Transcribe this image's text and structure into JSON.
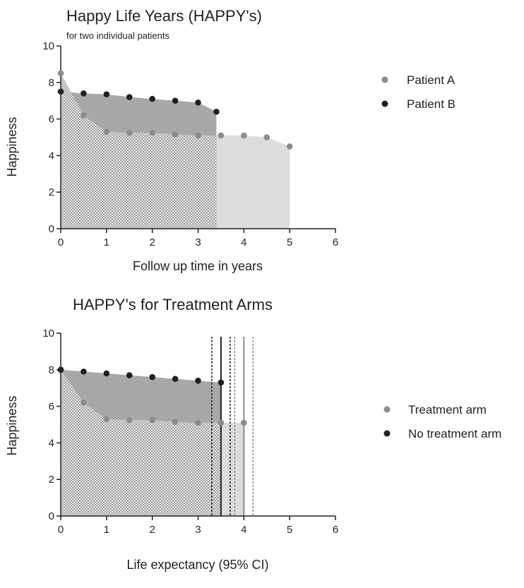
{
  "colors": {
    "patient_a_dot": "#8c8c8c",
    "patient_b_dot": "#231f20",
    "area_light": "#dcdcdc",
    "area_dark": "#a8a8a8",
    "hatch": "#b5b5b5",
    "axis": "#231f20",
    "ci_line_dark": "#231f20",
    "ci_line_gray": "#8c8c8c"
  },
  "chart_data": [
    {
      "type": "area",
      "title": "Happy Life Years (HAPPY's)",
      "subtitle": "for two individual patients",
      "xlabel": "Follow up time in years",
      "ylabel": "Happiness",
      "xlim": [
        0,
        6
      ],
      "ylim": [
        0,
        10
      ],
      "x_ticks": [
        "0",
        "1",
        "2",
        "3",
        "4",
        "5",
        "6"
      ],
      "y_ticks": [
        "0",
        "2",
        "4",
        "6",
        "8",
        "10"
      ],
      "legend_position": "right",
      "series": [
        {
          "name": "Patient A",
          "color": "#8c8c8c",
          "x": [
            0,
            0.5,
            1,
            1.5,
            2,
            2.5,
            3,
            3.5,
            4,
            4.5,
            5
          ],
          "y": [
            8.5,
            6.2,
            5.3,
            5.25,
            5.25,
            5.15,
            5.1,
            5.1,
            5.1,
            5.0,
            4.5
          ]
        },
        {
          "name": "Patient B",
          "color": "#231f20",
          "x": [
            0,
            0.5,
            1,
            1.5,
            2,
            2.5,
            3,
            3.4
          ],
          "y": [
            7.5,
            7.4,
            7.35,
            7.2,
            7.1,
            7.0,
            6.9,
            6.4
          ]
        }
      ]
    },
    {
      "type": "area",
      "title": "HAPPY's for Treatment Arms",
      "xlabel": "Life expectancy (95% CI)",
      "ylabel": "Happiness",
      "xlim": [
        0,
        6
      ],
      "ylim": [
        0,
        10
      ],
      "x_ticks": [
        "0",
        "1",
        "2",
        "3",
        "4",
        "5",
        "6"
      ],
      "y_ticks": [
        "0",
        "2",
        "4",
        "6",
        "8",
        "10"
      ],
      "legend_position": "right",
      "series": [
        {
          "name": "Treatment arm",
          "color": "#8c8c8c",
          "x": [
            0,
            0.5,
            1,
            1.5,
            2,
            2.5,
            3,
            3.5,
            4
          ],
          "y": [
            8.0,
            6.2,
            5.3,
            5.25,
            5.25,
            5.15,
            5.1,
            5.1,
            5.1
          ]
        },
        {
          "name": "No treatment arm",
          "color": "#231f20",
          "x": [
            0,
            0.5,
            1,
            1.5,
            2,
            2.5,
            3,
            3.5
          ],
          "y": [
            8.0,
            7.9,
            7.8,
            7.7,
            7.6,
            7.5,
            7.4,
            7.3
          ]
        }
      ],
      "reference_lines": [
        {
          "x": 3.5,
          "style": "solid",
          "color": "#231f20"
        },
        {
          "x": 3.3,
          "style": "dashed",
          "color": "#231f20"
        },
        {
          "x": 3.7,
          "style": "dashed",
          "color": "#231f20"
        },
        {
          "x": 4.0,
          "style": "solid",
          "color": "#8c8c8c"
        },
        {
          "x": 3.8,
          "style": "dashed",
          "color": "#8c8c8c"
        },
        {
          "x": 4.2,
          "style": "dashed",
          "color": "#8c8c8c"
        }
      ]
    }
  ]
}
